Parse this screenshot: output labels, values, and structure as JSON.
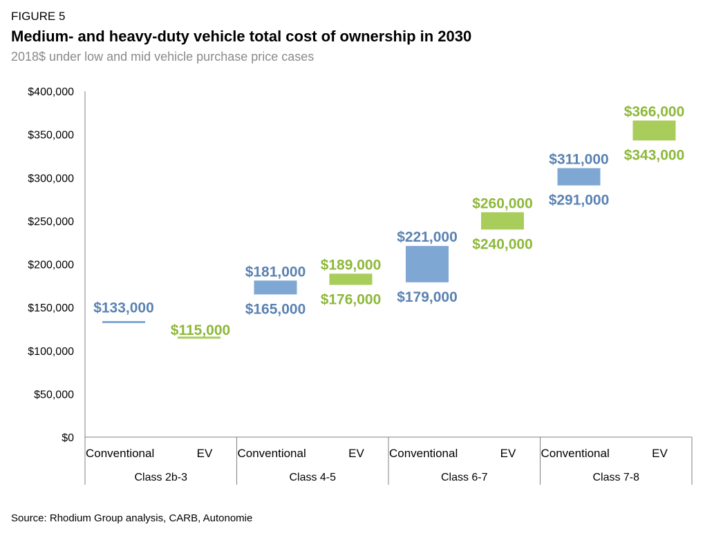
{
  "figure_label": "FIGURE 5",
  "colors": {
    "conventional": "#7fa7d3",
    "ev": "#a8cd5b",
    "conventional_text": "#5a82b2",
    "ev_text": "#8db83a",
    "axis": "#808080"
  },
  "chart_data": {
    "type": "bar",
    "title": "Medium- and heavy-duty vehicle total cost of ownership in 2030",
    "subtitle": "2018$ under low and mid vehicle purchase price cases",
    "source": "Source: Rhodium Group analysis, CARB, Autonomie",
    "ylim": [
      0,
      400000
    ],
    "yticks": [
      {
        "value": 0,
        "label": "$0"
      },
      {
        "value": 50000,
        "label": "$50,000"
      },
      {
        "value": 100000,
        "label": "$100,000"
      },
      {
        "value": 150000,
        "label": "$150,000"
      },
      {
        "value": 200000,
        "label": "$200,000"
      },
      {
        "value": 250000,
        "label": "$250,000"
      },
      {
        "value": 300000,
        "label": "$300,000"
      },
      {
        "value": 350000,
        "label": "$350,000"
      },
      {
        "value": 400000,
        "label": "$400,000"
      }
    ],
    "grid": false,
    "groups": [
      {
        "label": "Class 2b-3",
        "bars": [
          {
            "type_label": "Conventional",
            "kind": "conventional",
            "low": 133000,
            "high": 133000,
            "low_label": "",
            "high_label": "$133,000"
          },
          {
            "type_label": "EV",
            "kind": "ev",
            "low": 115000,
            "high": 115000,
            "low_label": "",
            "high_label": "$115,000"
          }
        ]
      },
      {
        "label": "Class 4-5",
        "bars": [
          {
            "type_label": "Conventional",
            "kind": "conventional",
            "low": 165000,
            "high": 181000,
            "low_label": "$165,000",
            "high_label": "$181,000"
          },
          {
            "type_label": "EV",
            "kind": "ev",
            "low": 176000,
            "high": 189000,
            "low_label": "$176,000",
            "high_label": "$189,000"
          }
        ]
      },
      {
        "label": "Class 6-7",
        "bars": [
          {
            "type_label": "Conventional",
            "kind": "conventional",
            "low": 179000,
            "high": 221000,
            "low_label": "$179,000",
            "high_label": "$221,000"
          },
          {
            "type_label": "EV",
            "kind": "ev",
            "low": 240000,
            "high": 260000,
            "low_label": "$240,000",
            "high_label": "$260,000"
          }
        ]
      },
      {
        "label": "Class 7-8",
        "bars": [
          {
            "type_label": "Conventional",
            "kind": "conventional",
            "low": 291000,
            "high": 311000,
            "low_label": "$291,000",
            "high_label": "$311,000"
          },
          {
            "type_label": "EV",
            "kind": "ev",
            "low": 343000,
            "high": 366000,
            "low_label": "$343,000",
            "high_label": "$366,000"
          }
        ]
      }
    ]
  }
}
